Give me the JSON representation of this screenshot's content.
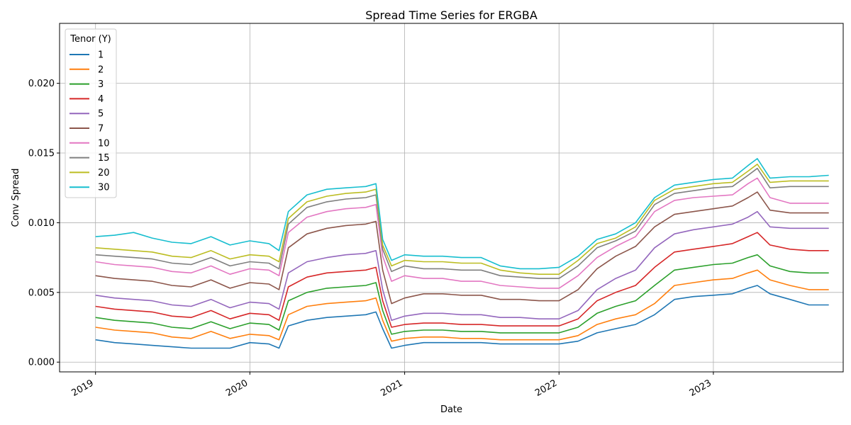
{
  "chart_data": {
    "type": "line",
    "title": "Spread Time Series for ERGBA",
    "xlabel": "Date",
    "ylabel": "Conv Spread",
    "x_axis": "date",
    "xlim": [
      "2018-10-08",
      "2023-11-04"
    ],
    "ylim": [
      -0.0007,
      0.0243
    ],
    "x_ticks": [
      "2019-01-01",
      "2020-01-01",
      "2021-01-01",
      "2022-01-01",
      "2023-01-01"
    ],
    "x_tick_labels": [
      "2019",
      "2020",
      "2021",
      "2022",
      "2023"
    ],
    "y_ticks": [
      0.0,
      0.005,
      0.01,
      0.015,
      0.02
    ],
    "y_tick_labels": [
      "0.000",
      "0.005",
      "0.010",
      "0.015",
      "0.020"
    ],
    "grid": true,
    "legend": {
      "title": "Tenor (Y)",
      "position": "top-left"
    },
    "x": [
      "2019-01-01",
      "2019-02-15",
      "2019-04-01",
      "2019-05-15",
      "2019-07-01",
      "2019-08-15",
      "2019-10-01",
      "2019-11-15",
      "2020-01-01",
      "2020-02-15",
      "2020-03-10",
      "2020-04-01",
      "2020-05-15",
      "2020-07-01",
      "2020-08-15",
      "2020-10-01",
      "2020-10-25",
      "2020-11-10",
      "2020-12-01",
      "2021-01-01",
      "2021-02-15",
      "2021-04-01",
      "2021-05-15",
      "2021-07-01",
      "2021-08-15",
      "2021-10-01",
      "2021-11-15",
      "2022-01-01",
      "2022-02-15",
      "2022-04-01",
      "2022-05-15",
      "2022-07-01",
      "2022-08-15",
      "2022-10-01",
      "2022-11-15",
      "2023-01-01",
      "2023-02-15",
      "2023-03-24",
      "2023-04-15",
      "2023-05-15",
      "2023-07-01",
      "2023-08-15",
      "2023-10-01"
    ],
    "series": [
      {
        "name": "1",
        "color": "#1f77b4",
        "values": [
          0.0016,
          0.0014,
          0.0013,
          0.0012,
          0.0011,
          0.001,
          0.001,
          0.001,
          0.0014,
          0.0013,
          0.001,
          0.0026,
          0.003,
          0.0032,
          0.0033,
          0.0034,
          0.0036,
          0.0024,
          0.001,
          0.0012,
          0.0014,
          0.0014,
          0.0014,
          0.0014,
          0.0013,
          0.0013,
          0.0013,
          0.0013,
          0.0015,
          0.0021,
          0.0024,
          0.0027,
          0.0034,
          0.0045,
          0.0047,
          0.0048,
          0.0049,
          0.0053,
          0.0055,
          0.0049,
          0.0045,
          0.0041,
          0.0041
        ]
      },
      {
        "name": "2",
        "color": "#ff7f0e",
        "values": [
          0.0025,
          0.0023,
          0.0022,
          0.0021,
          0.0018,
          0.0017,
          0.0022,
          0.0017,
          0.002,
          0.0019,
          0.0016,
          0.0034,
          0.004,
          0.0042,
          0.0043,
          0.0044,
          0.0046,
          0.003,
          0.0015,
          0.0017,
          0.0018,
          0.0018,
          0.0017,
          0.0017,
          0.0016,
          0.0016,
          0.0016,
          0.0016,
          0.0019,
          0.0027,
          0.0031,
          0.0034,
          0.0042,
          0.0055,
          0.0057,
          0.0059,
          0.006,
          0.0064,
          0.0066,
          0.0059,
          0.0055,
          0.0052,
          0.0052
        ]
      },
      {
        "name": "3",
        "color": "#2ca02c",
        "values": [
          0.0032,
          0.003,
          0.0029,
          0.0028,
          0.0025,
          0.0024,
          0.0029,
          0.0024,
          0.0028,
          0.0027,
          0.0023,
          0.0044,
          0.005,
          0.0053,
          0.0054,
          0.0055,
          0.0057,
          0.0037,
          0.002,
          0.0022,
          0.0023,
          0.0023,
          0.0022,
          0.0022,
          0.0021,
          0.0021,
          0.0021,
          0.0021,
          0.0025,
          0.0035,
          0.004,
          0.0044,
          0.0055,
          0.0066,
          0.0068,
          0.007,
          0.0071,
          0.0075,
          0.0077,
          0.0069,
          0.0065,
          0.0064,
          0.0064
        ]
      },
      {
        "name": "4",
        "color": "#d62728",
        "values": [
          0.004,
          0.0038,
          0.0037,
          0.0036,
          0.0033,
          0.0032,
          0.0037,
          0.0031,
          0.0035,
          0.0034,
          0.003,
          0.0054,
          0.0061,
          0.0064,
          0.0065,
          0.0066,
          0.0068,
          0.0044,
          0.0025,
          0.0027,
          0.0028,
          0.0028,
          0.0027,
          0.0027,
          0.0026,
          0.0026,
          0.0026,
          0.0026,
          0.0031,
          0.0044,
          0.005,
          0.0055,
          0.0068,
          0.0079,
          0.0081,
          0.0083,
          0.0085,
          0.009,
          0.0093,
          0.0084,
          0.0081,
          0.008,
          0.008
        ]
      },
      {
        "name": "5",
        "color": "#9467bd",
        "values": [
          0.0048,
          0.0046,
          0.0045,
          0.0044,
          0.0041,
          0.004,
          0.0045,
          0.0039,
          0.0043,
          0.0042,
          0.0038,
          0.0064,
          0.0072,
          0.0075,
          0.0077,
          0.0078,
          0.008,
          0.0052,
          0.003,
          0.0033,
          0.0035,
          0.0035,
          0.0034,
          0.0034,
          0.0032,
          0.0032,
          0.0031,
          0.0031,
          0.0037,
          0.0052,
          0.006,
          0.0066,
          0.0082,
          0.0092,
          0.0095,
          0.0097,
          0.0099,
          0.0104,
          0.0108,
          0.0097,
          0.0096,
          0.0096,
          0.0096
        ]
      },
      {
        "name": "7",
        "color": "#8c564b",
        "values": [
          0.0062,
          0.006,
          0.0059,
          0.0058,
          0.0055,
          0.0054,
          0.0059,
          0.0053,
          0.0057,
          0.0056,
          0.0052,
          0.0082,
          0.0092,
          0.0096,
          0.0098,
          0.0099,
          0.0101,
          0.0066,
          0.0042,
          0.0046,
          0.0049,
          0.0049,
          0.0048,
          0.0048,
          0.0045,
          0.0045,
          0.0044,
          0.0044,
          0.0052,
          0.0067,
          0.0076,
          0.0083,
          0.0097,
          0.0106,
          0.0108,
          0.011,
          0.0112,
          0.0118,
          0.0122,
          0.0109,
          0.0107,
          0.0107,
          0.0107
        ]
      },
      {
        "name": "10",
        "color": "#e377c2",
        "values": [
          0.0072,
          0.007,
          0.0069,
          0.0068,
          0.0065,
          0.0064,
          0.0069,
          0.0063,
          0.0067,
          0.0066,
          0.0062,
          0.0093,
          0.0104,
          0.0108,
          0.011,
          0.0111,
          0.0113,
          0.0076,
          0.0058,
          0.0062,
          0.006,
          0.006,
          0.0058,
          0.0058,
          0.0055,
          0.0054,
          0.0053,
          0.0053,
          0.0062,
          0.0075,
          0.0083,
          0.009,
          0.0108,
          0.0116,
          0.0118,
          0.0119,
          0.012,
          0.0128,
          0.0132,
          0.0118,
          0.0114,
          0.0114,
          0.0114
        ]
      },
      {
        "name": "15",
        "color": "#7f7f7f",
        "values": [
          0.0077,
          0.0076,
          0.0075,
          0.0074,
          0.0071,
          0.007,
          0.0075,
          0.0069,
          0.0072,
          0.0071,
          0.0067,
          0.0099,
          0.0111,
          0.0115,
          0.0117,
          0.0118,
          0.012,
          0.0081,
          0.0065,
          0.0069,
          0.0067,
          0.0067,
          0.0066,
          0.0066,
          0.0062,
          0.0061,
          0.006,
          0.006,
          0.0069,
          0.0082,
          0.0087,
          0.0094,
          0.0113,
          0.0121,
          0.0123,
          0.0125,
          0.0126,
          0.0134,
          0.0139,
          0.0125,
          0.0126,
          0.0126,
          0.0126
        ]
      },
      {
        "name": "20",
        "color": "#bcbd22",
        "values": [
          0.0082,
          0.0081,
          0.008,
          0.0079,
          0.0076,
          0.0075,
          0.008,
          0.0074,
          0.0077,
          0.0076,
          0.0072,
          0.0103,
          0.0115,
          0.0119,
          0.0121,
          0.0122,
          0.0124,
          0.0084,
          0.0069,
          0.0073,
          0.0072,
          0.0072,
          0.0071,
          0.0071,
          0.0066,
          0.0064,
          0.0063,
          0.0063,
          0.0073,
          0.0085,
          0.0089,
          0.0097,
          0.0116,
          0.0124,
          0.0126,
          0.0128,
          0.0129,
          0.0137,
          0.0142,
          0.0129,
          0.013,
          0.013,
          0.013
        ]
      },
      {
        "name": "30",
        "color": "#17becf",
        "values": [
          0.009,
          0.0091,
          0.0093,
          0.0089,
          0.0086,
          0.0085,
          0.009,
          0.0084,
          0.0087,
          0.0085,
          0.008,
          0.0108,
          0.012,
          0.0124,
          0.0125,
          0.0126,
          0.0128,
          0.0088,
          0.0073,
          0.0077,
          0.0076,
          0.0076,
          0.0075,
          0.0075,
          0.0069,
          0.0067,
          0.0067,
          0.0068,
          0.0076,
          0.0088,
          0.0092,
          0.01,
          0.0118,
          0.0127,
          0.0129,
          0.0131,
          0.0132,
          0.0141,
          0.0146,
          0.0132,
          0.0133,
          0.0133,
          0.0134
        ]
      }
    ]
  }
}
